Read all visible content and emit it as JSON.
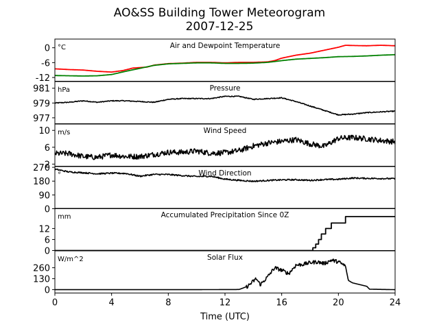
{
  "title": "AO&SS Building Tower Meteorogram",
  "subtitle": "2007-12-25",
  "xlabel": "Time (UTC)",
  "x_ticks": [
    0,
    4,
    8,
    12,
    16,
    20,
    24
  ],
  "colors": {
    "air": "#ff0000",
    "dewpoint": "#008000",
    "default": "#000000"
  },
  "chart_data": [
    {
      "type": "line",
      "title": "Air and Dewpoint Temperature",
      "unit_label": "°C",
      "ylim": [
        -13.5,
        3.5
      ],
      "yticks": [
        -12,
        -6,
        0
      ],
      "xlim": [
        0,
        24
      ],
      "series": [
        {
          "color_key": "air",
          "points": [
            [
              0,
              -8.5
            ],
            [
              1,
              -8.8
            ],
            [
              2,
              -9.0
            ],
            [
              3,
              -9.5
            ],
            [
              4,
              -9.8
            ],
            [
              4.8,
              -9.2
            ],
            [
              5.5,
              -8.2
            ],
            [
              6.5,
              -7.8
            ],
            [
              7,
              -7.0
            ],
            [
              8,
              -6.4
            ],
            [
              9,
              -6.2
            ],
            [
              10,
              -5.9
            ],
            [
              11,
              -5.9
            ],
            [
              12,
              -6.1
            ],
            [
              13,
              -5.9
            ],
            [
              14,
              -5.9
            ],
            [
              15,
              -5.7
            ],
            [
              15.5,
              -5.2
            ],
            [
              16,
              -4.2
            ],
            [
              17,
              -3.0
            ],
            [
              18,
              -2.2
            ],
            [
              19,
              -1.0
            ],
            [
              20,
              0.2
            ],
            [
              20.5,
              1.0
            ],
            [
              21,
              0.9
            ],
            [
              22,
              0.8
            ],
            [
              23,
              1.0
            ],
            [
              24,
              0.8
            ]
          ]
        },
        {
          "color_key": "dewpoint",
          "points": [
            [
              0,
              -11.2
            ],
            [
              1,
              -11.3
            ],
            [
              2,
              -11.4
            ],
            [
              3,
              -11.3
            ],
            [
              4,
              -10.8
            ],
            [
              5,
              -9.5
            ],
            [
              6,
              -8.3
            ],
            [
              7,
              -7.1
            ],
            [
              8,
              -6.5
            ],
            [
              9,
              -6.3
            ],
            [
              10,
              -6.1
            ],
            [
              11,
              -6.1
            ],
            [
              12,
              -6.3
            ],
            [
              13,
              -6.3
            ],
            [
              14,
              -6.2
            ],
            [
              15,
              -5.9
            ],
            [
              16,
              -5.2
            ],
            [
              17,
              -4.6
            ],
            [
              18,
              -4.3
            ],
            [
              19,
              -4.0
            ],
            [
              20,
              -3.6
            ],
            [
              21,
              -3.5
            ],
            [
              22,
              -3.3
            ],
            [
              23,
              -3.0
            ],
            [
              24,
              -2.8
            ]
          ]
        }
      ]
    },
    {
      "type": "line",
      "title": "Pressure",
      "unit_label": "hPa",
      "ylim": [
        976.2,
        981.9
      ],
      "yticks": [
        977,
        979,
        981
      ],
      "xlim": [
        0,
        24
      ],
      "noise": 0.12,
      "series": [
        {
          "color_key": "default",
          "points": [
            [
              0,
              979.0
            ],
            [
              1,
              979.1
            ],
            [
              2,
              979.3
            ],
            [
              3,
              979.1
            ],
            [
              4,
              979.3
            ],
            [
              5,
              979.3
            ],
            [
              6,
              979.2
            ],
            [
              7,
              979.1
            ],
            [
              8,
              979.5
            ],
            [
              9,
              979.6
            ],
            [
              10,
              979.6
            ],
            [
              11,
              979.6
            ],
            [
              12,
              979.9
            ],
            [
              13,
              979.9
            ],
            [
              14,
              979.5
            ],
            [
              15,
              979.6
            ],
            [
              16,
              979.7
            ],
            [
              17,
              979.2
            ],
            [
              18,
              978.6
            ],
            [
              19,
              978.0
            ],
            [
              20,
              977.4
            ],
            [
              21,
              977.5
            ],
            [
              22,
              977.7
            ],
            [
              23,
              977.8
            ],
            [
              24,
              977.9
            ]
          ]
        }
      ]
    },
    {
      "type": "line",
      "title": "Wind Speed",
      "unit_label": "m/s",
      "ylim": [
        1.5,
        11.5
      ],
      "yticks": [
        2,
        6,
        10
      ],
      "xlim": [
        0,
        24
      ],
      "noise": 1.3,
      "series": [
        {
          "color_key": "default",
          "points": [
            [
              0,
              4.5
            ],
            [
              1,
              4.5
            ],
            [
              2,
              3.8
            ],
            [
              3,
              3.6
            ],
            [
              4,
              4.2
            ],
            [
              5,
              3.8
            ],
            [
              6,
              3.8
            ],
            [
              7,
              4.3
            ],
            [
              8,
              4.8
            ],
            [
              9,
              4.8
            ],
            [
              10,
              5.1
            ],
            [
              11,
              4.6
            ],
            [
              12,
              4.7
            ],
            [
              13,
              5.2
            ],
            [
              14,
              6.3
            ],
            [
              15,
              7.0
            ],
            [
              16,
              7.4
            ],
            [
              17,
              7.8
            ],
            [
              18,
              6.8
            ],
            [
              19,
              6.2
            ],
            [
              20,
              8.1
            ],
            [
              21,
              8.3
            ],
            [
              22,
              8.0
            ],
            [
              23,
              7.6
            ],
            [
              24,
              7.3
            ]
          ]
        }
      ]
    },
    {
      "type": "line",
      "title": "Wind Direction",
      "unit_label": "°",
      "ylim": [
        0,
        275
      ],
      "yticks": [
        0,
        90,
        180,
        270
      ],
      "xlim": [
        0,
        24
      ],
      "noise": 9,
      "series": [
        {
          "color_key": "default",
          "points": [
            [
              0,
              258
            ],
            [
              1,
              240
            ],
            [
              2,
              235
            ],
            [
              3,
              228
            ],
            [
              4,
              232
            ],
            [
              5,
              230
            ],
            [
              6,
              212
            ],
            [
              7,
              224
            ],
            [
              8,
              223
            ],
            [
              9,
              216
            ],
            [
              10,
              210
            ],
            [
              11,
              212
            ],
            [
              12,
              193
            ],
            [
              13,
              185
            ],
            [
              14,
              179
            ],
            [
              15,
              184
            ],
            [
              16,
              188
            ],
            [
              17,
              189
            ],
            [
              18,
              185
            ],
            [
              19,
              190
            ],
            [
              20,
              192
            ],
            [
              21,
              200
            ],
            [
              22,
              198
            ],
            [
              23,
              197
            ],
            [
              24,
              196
            ]
          ]
        }
      ]
    },
    {
      "type": "line",
      "title": "Accumulated Precipitation Since 0Z",
      "unit_label": "mm",
      "ylim": [
        0,
        23
      ],
      "yticks": [
        0,
        6,
        12
      ],
      "xlim": [
        0,
        24
      ],
      "step": true,
      "series": [
        {
          "color_key": "default",
          "points": [
            [
              0,
              0
            ],
            [
              18,
              0
            ],
            [
              18.2,
              1.5
            ],
            [
              18.4,
              3.5
            ],
            [
              18.6,
              6
            ],
            [
              18.8,
              9
            ],
            [
              19.1,
              12
            ],
            [
              19.5,
              15
            ],
            [
              20.5,
              15
            ],
            [
              20.5,
              18.5
            ],
            [
              24,
              18.5
            ]
          ]
        }
      ]
    },
    {
      "type": "line",
      "title": "Solar Flux",
      "unit_label": "W/m^2",
      "ylim": [
        -40,
        460
      ],
      "yticks": [
        0,
        130,
        260
      ],
      "xlim": [
        0,
        24
      ],
      "noise_range": [
        13.5,
        20.5
      ],
      "noise": 45,
      "series": [
        {
          "color_key": "default",
          "points": [
            [
              0,
              0
            ],
            [
              10,
              0
            ],
            [
              13,
              2
            ],
            [
              13.6,
              40
            ],
            [
              14,
              100
            ],
            [
              14.2,
              130
            ],
            [
              14.5,
              60
            ],
            [
              15,
              150
            ],
            [
              15.5,
              260
            ],
            [
              16,
              230
            ],
            [
              16.5,
              190
            ],
            [
              17,
              290
            ],
            [
              17.5,
              300
            ],
            [
              18,
              320
            ],
            [
              18.5,
              330
            ],
            [
              19,
              310
            ],
            [
              19.5,
              350
            ],
            [
              20,
              330
            ],
            [
              20.5,
              280
            ],
            [
              20.7,
              110
            ],
            [
              21,
              80
            ],
            [
              21.5,
              60
            ],
            [
              22,
              40
            ],
            [
              22.2,
              5
            ],
            [
              24,
              0
            ]
          ]
        }
      ]
    }
  ]
}
